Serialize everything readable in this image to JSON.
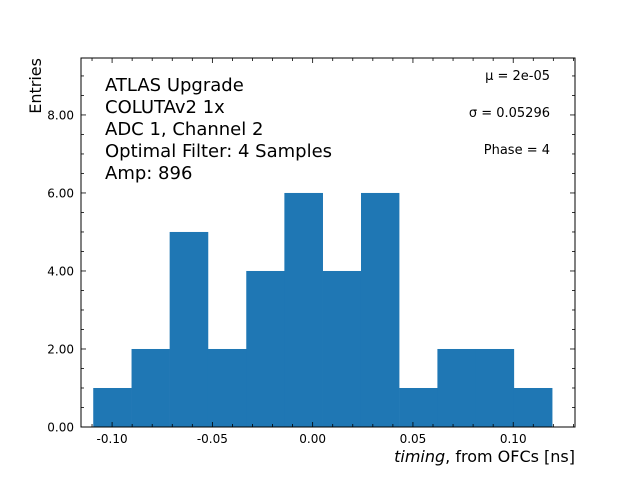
{
  "chart_data": {
    "type": "bar",
    "subtype": "histogram",
    "bin_edges": [
      -0.1094,
      -0.0903,
      -0.0713,
      -0.0522,
      -0.0331,
      -0.0141,
      0.005,
      0.0241,
      0.0431,
      0.0622,
      0.0813,
      0.1003,
      0.1194
    ],
    "values": [
      1,
      2,
      5,
      2,
      4,
      6,
      4,
      6,
      1,
      2,
      2,
      1
    ],
    "color": "#1f77b4",
    "xlabel_italic": "timing",
    "xlabel_rest": ", from OFCs [ns]",
    "ylabel": "Entries",
    "xlim": [
      -0.1155,
      0.1308
    ],
    "ylim": [
      0,
      9.46
    ],
    "xticks": [
      -0.1,
      -0.05,
      0.0,
      0.05,
      0.1
    ],
    "xtick_labels": [
      "-0.10",
      "-0.05",
      "0.00",
      "0.05",
      "0.10"
    ],
    "yticks": [
      0,
      2,
      4,
      6,
      8
    ],
    "ytick_labels": [
      "0.00",
      "2.00",
      "4.00",
      "6.00",
      "8.00"
    ],
    "grid": false,
    "annotations_left": [
      "ATLAS Upgrade",
      "COLUTAv2 1x",
      "ADC 1, Channel 2",
      "Optimal Filter: 4 Samples",
      "Amp: 896"
    ],
    "annotations_right": [
      "μ = 2e-05",
      "σ = 0.05296",
      "Phase = 4"
    ]
  }
}
